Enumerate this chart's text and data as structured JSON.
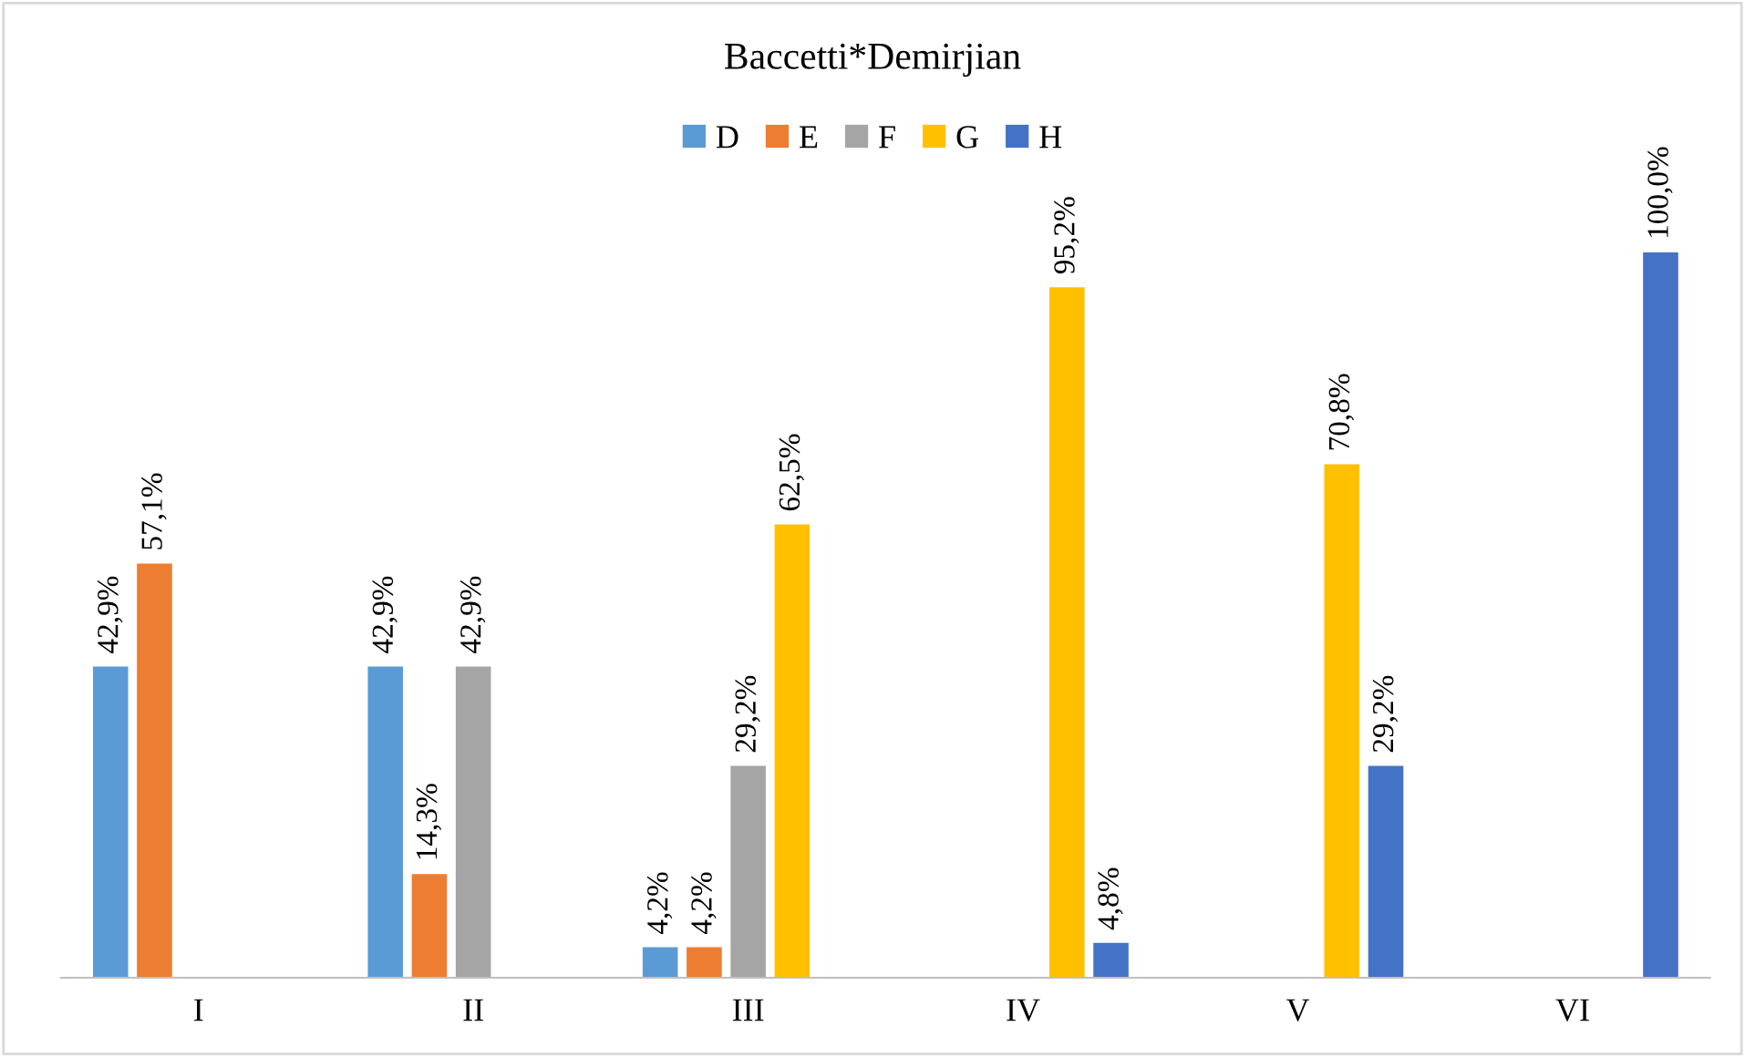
{
  "chart_data": {
    "type": "bar",
    "title": "Baccetti*Demirjian",
    "categories": [
      "I",
      "II",
      "III",
      "IV",
      "V",
      "VI"
    ],
    "legend": "top",
    "series": [
      {
        "name": "D",
        "color": "#5b9bd5",
        "values": [
          42.9,
          42.9,
          4.2,
          null,
          null,
          null
        ],
        "value_labels": [
          "42,9%",
          "42,9%",
          "4,2%",
          null,
          null,
          null
        ]
      },
      {
        "name": "E",
        "color": "#ed7d31",
        "values": [
          57.1,
          14.3,
          4.2,
          null,
          null,
          null
        ],
        "value_labels": [
          "57,1%",
          "14,3%",
          "4,2%",
          null,
          null,
          null
        ]
      },
      {
        "name": "F",
        "color": "#a5a5a5",
        "values": [
          null,
          42.9,
          29.2,
          null,
          null,
          null
        ],
        "value_labels": [
          null,
          "42,9%",
          "29,2%",
          null,
          null,
          null
        ]
      },
      {
        "name": "G",
        "color": "#ffc000",
        "values": [
          null,
          null,
          62.5,
          95.2,
          70.8,
          null
        ],
        "value_labels": [
          null,
          null,
          "62,5%",
          "95,2%",
          "70,8%",
          null
        ]
      },
      {
        "name": "H",
        "color": "#4472c4",
        "values": [
          null,
          null,
          null,
          4.8,
          29.2,
          100.0
        ],
        "value_labels": [
          null,
          null,
          null,
          "4,8%",
          "29,2%",
          "100,0%"
        ]
      }
    ]
  }
}
